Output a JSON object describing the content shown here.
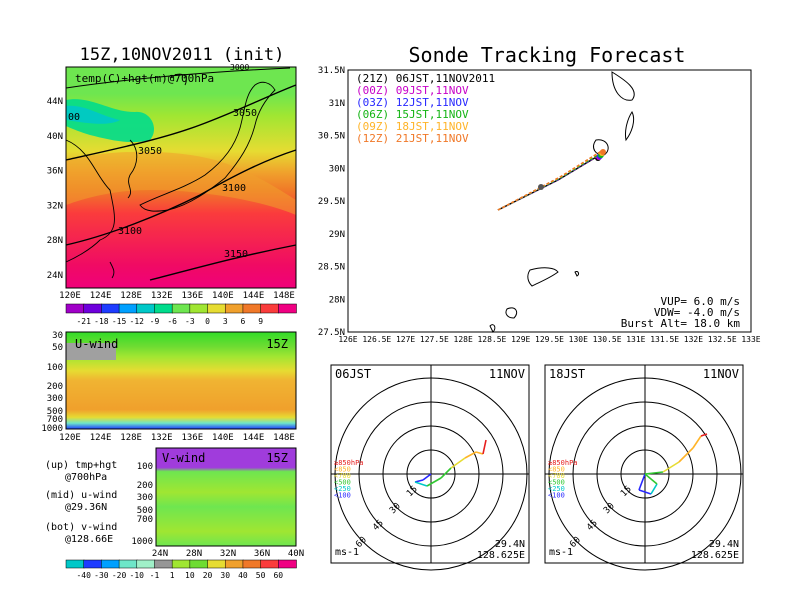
{
  "left_title": "15Z,10NOV2011 (init)",
  "main_title": "Sonde Tracking Forecast",
  "temp_map": {
    "label": "temp(C)+hgt(m)@700hPa",
    "lat_ticks": [
      "44N",
      "40N",
      "36N",
      "32N",
      "28N",
      "24N"
    ],
    "lon_ticks": [
      "120E",
      "124E",
      "128E",
      "132E",
      "136E",
      "140E",
      "144E",
      "148E"
    ],
    "contour_labels": [
      "3050",
      "3050",
      "3100",
      "3100",
      "3150",
      "00",
      "3000"
    ],
    "colorbar_labels": [
      "-21",
      "-18",
      "-15",
      "-12",
      "-9",
      "-6",
      "-3",
      "0",
      "3",
      "6",
      "9"
    ],
    "colorbar_colors": [
      "#a000c8",
      "#6e00dc",
      "#1e3cff",
      "#00a0ff",
      "#00c8c8",
      "#00dc8c",
      "#6ee650",
      "#a0e632",
      "#e6dc32",
      "#f0a02c",
      "#f07828",
      "#fa3c3c",
      "#f00082"
    ]
  },
  "u_wind": {
    "label": "U-wind",
    "time": "15Z",
    "lev_ticks": [
      "30",
      "50",
      "100",
      "200",
      "300",
      "500",
      "700",
      "1000"
    ],
    "lon_ticks": [
      "120E",
      "124E",
      "128E",
      "132E",
      "136E",
      "140E",
      "144E",
      "148E"
    ]
  },
  "v_wind": {
    "label": "V-wind",
    "time": "15Z",
    "lev_ticks": [
      "100",
      "200",
      "300",
      "500",
      "700",
      "1000"
    ],
    "lat_ticks": [
      "24N",
      "28N",
      "32N",
      "36N",
      "40N"
    ]
  },
  "legend_notes": [
    {
      "a": "(up) tmp+hgt",
      "b": "@700hPa"
    },
    {
      "a": "(mid) u-wind",
      "b": "@29.36N"
    },
    {
      "a": "(bot) v-wind",
      "b": "@128.66E"
    }
  ],
  "wind_colorbar": {
    "labels": [
      "-40",
      "-30",
      "-20",
      "-10",
      "-1",
      "1",
      "10",
      "20",
      "30",
      "40",
      "50",
      "60"
    ],
    "colors": [
      "#00c8c8",
      "#1e3cff",
      "#00a0ff",
      "#6ee6c8",
      "#a0f0c8",
      "#969696",
      "#a0e632",
      "#6edc32",
      "#e6dc32",
      "#f0a02c",
      "#f07828",
      "#fa3c3c",
      "#f00082"
    ]
  },
  "track": {
    "lat_ticks": [
      "31.5N",
      "31N",
      "30.5N",
      "30N",
      "29.5N",
      "29N",
      "28.5N",
      "28N",
      "27.5N"
    ],
    "lon_ticks": [
      "126E",
      "126.5E",
      "127E",
      "127.5E",
      "128E",
      "128.5E",
      "129E",
      "129.5E",
      "130E",
      "130.5E",
      "131E",
      "131.5E",
      "132E",
      "132.5E",
      "133E"
    ],
    "legend": [
      {
        "label": "(21Z)  06JST,11NOV2011",
        "color": "#000000"
      },
      {
        "label": "(00Z)  09JST,11NOV",
        "color": "#c800c8"
      },
      {
        "label": "(03Z)  12JST,11NOV",
        "color": "#2828ff"
      },
      {
        "label": "(06Z)  15JST,11NOV",
        "color": "#14b414"
      },
      {
        "label": "(09Z)  18JST,11NOV",
        "color": "#ffb428"
      },
      {
        "label": "(12Z)  21JST,11NOV",
        "color": "#f07828"
      }
    ],
    "params": [
      "VUP=  6.0  m/s",
      "VDW=  -4.0  m/s",
      "Burst Alt=  18.0  km"
    ]
  },
  "hodographs": [
    {
      "time": "06JST",
      "date": "11NOV",
      "lat": "29.4N",
      "lon": "128.625E",
      "unit": "ms-1",
      "rings": [
        "15",
        "30",
        "45",
        "60"
      ]
    },
    {
      "time": "18JST",
      "date": "11NOV",
      "lat": "29.4N",
      "lon": "128.625E",
      "unit": "ms-1",
      "rings": [
        "15",
        "30",
        "45",
        "60"
      ]
    }
  ],
  "hodo_levels": [
    {
      "label": "≥850hPa",
      "color": "#e61e1e"
    },
    {
      "label": "<850",
      "color": "#ffb428"
    },
    {
      "label": "<700",
      "color": "#e6dc32"
    },
    {
      "label": "<500",
      "color": "#32c832"
    },
    {
      "label": "<250",
      "color": "#00c8c8"
    },
    {
      "label": "<100",
      "color": "#2828ff"
    }
  ]
}
